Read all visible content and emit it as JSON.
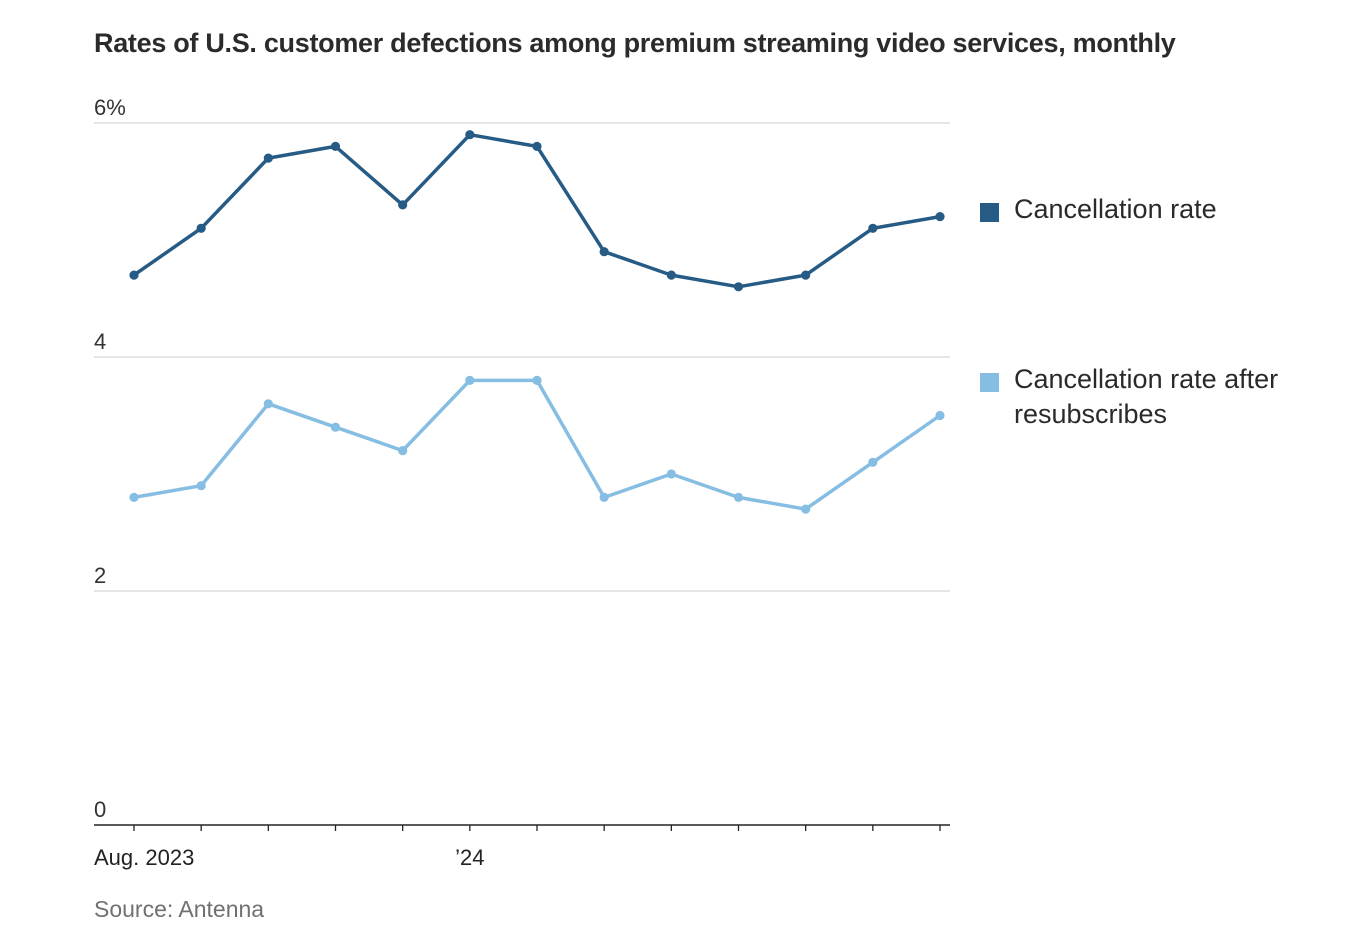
{
  "title": "Rates of U.S. customer defections among premium streaming video services, monthly",
  "source": "Source: Antenna",
  "chart_data": {
    "type": "line",
    "title": "Rates of U.S. customer defections among premium streaming video services, monthly",
    "xlabel": "",
    "ylabel": "",
    "ylim": [
      0,
      6
    ],
    "y_ticks": [
      {
        "value": 6,
        "label": "6%"
      },
      {
        "value": 4,
        "label": "4"
      },
      {
        "value": 2,
        "label": "2"
      },
      {
        "value": 0,
        "label": "0"
      }
    ],
    "x": [
      "2023-08",
      "2023-09",
      "2023-10",
      "2023-11",
      "2023-12",
      "2024-01",
      "2024-02",
      "2024-03",
      "2024-04",
      "2024-05",
      "2024-06",
      "2024-07",
      "2024-08"
    ],
    "x_tick_labels": [
      {
        "x": "2023-08",
        "label": "Aug. 2023"
      },
      {
        "x": "2024-01",
        "label": "’24"
      }
    ],
    "grid": true,
    "legend_position": "right",
    "series": [
      {
        "name": "Cancellation rate",
        "color": "#265b85",
        "values": [
          4.7,
          5.1,
          5.7,
          5.8,
          5.3,
          5.9,
          5.8,
          4.9,
          4.7,
          4.6,
          4.7,
          5.1,
          5.2
        ]
      },
      {
        "name": "Cancellation rate after resubscribes",
        "color": "#86bde3",
        "values": [
          2.8,
          2.9,
          3.6,
          3.4,
          3.2,
          3.8,
          3.8,
          2.8,
          3.0,
          2.8,
          2.7,
          3.1,
          3.5
        ]
      }
    ]
  }
}
